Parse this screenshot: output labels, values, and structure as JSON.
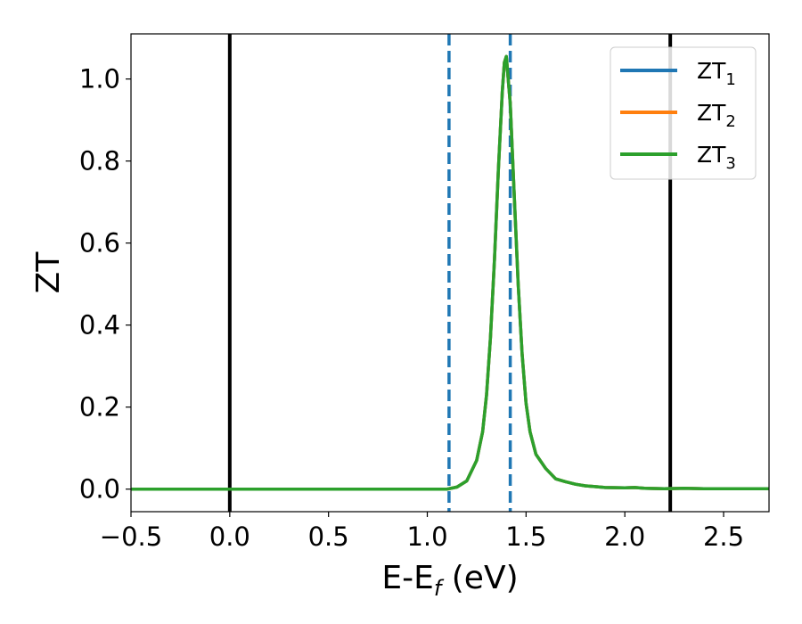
{
  "chart_data": {
    "type": "line",
    "xlabel": {
      "main": "E-E",
      "sub": "f",
      "suffix": " (eV)"
    },
    "ylabel": "ZT",
    "xlim": [
      -0.5,
      2.73
    ],
    "ylim": [
      -0.055,
      1.11
    ],
    "xticks": [
      -0.5,
      0.0,
      0.5,
      1.0,
      1.5,
      2.0,
      2.5
    ],
    "xtick_labels": [
      "−0.5",
      "0.0",
      "0.5",
      "1.0",
      "1.5",
      "2.0",
      "2.5"
    ],
    "yticks": [
      0.0,
      0.2,
      0.4,
      0.6,
      0.8,
      1.0
    ],
    "ytick_labels": [
      "0.0",
      "0.2",
      "0.4",
      "0.6",
      "0.8",
      "1.0"
    ],
    "grid": false,
    "legend_position": "top-right",
    "vlines": [
      {
        "x": 0.0,
        "style": "solid",
        "color": "#000000"
      },
      {
        "x": 2.23,
        "style": "solid",
        "color": "#000000"
      },
      {
        "x": 1.11,
        "style": "dashed",
        "color": "#1f77b4"
      },
      {
        "x": 1.42,
        "style": "dashed",
        "color": "#1f77b4"
      }
    ],
    "x": [
      -0.5,
      0.0,
      0.5,
      1.0,
      1.1,
      1.15,
      1.2,
      1.25,
      1.28,
      1.3,
      1.32,
      1.34,
      1.36,
      1.38,
      1.39,
      1.4,
      1.42,
      1.44,
      1.46,
      1.48,
      1.5,
      1.52,
      1.55,
      1.6,
      1.65,
      1.7,
      1.75,
      1.8,
      1.85,
      1.9,
      2.0,
      2.05,
      2.1,
      2.2,
      2.3,
      2.4,
      2.5,
      2.6,
      2.73
    ],
    "series": [
      {
        "name": "ZT",
        "sub": "1",
        "color": "#1f77b4",
        "values": [
          0.0,
          0.0,
          0.0,
          0.0,
          0.0,
          0.005,
          0.02,
          0.07,
          0.14,
          0.23,
          0.37,
          0.56,
          0.78,
          0.97,
          1.04,
          1.055,
          0.94,
          0.72,
          0.5,
          0.33,
          0.21,
          0.14,
          0.085,
          0.05,
          0.025,
          0.018,
          0.012,
          0.008,
          0.006,
          0.004,
          0.003,
          0.004,
          0.002,
          0.001,
          0.002,
          0.001,
          0.001,
          0.001,
          0.001
        ]
      },
      {
        "name": "ZT",
        "sub": "2",
        "color": "#ff7f0e",
        "values": [
          0.0,
          0.0,
          0.0,
          0.0,
          0.0,
          0.005,
          0.02,
          0.07,
          0.14,
          0.23,
          0.37,
          0.56,
          0.78,
          0.97,
          1.04,
          1.055,
          0.94,
          0.72,
          0.5,
          0.33,
          0.21,
          0.14,
          0.085,
          0.05,
          0.025,
          0.018,
          0.012,
          0.008,
          0.006,
          0.004,
          0.003,
          0.004,
          0.002,
          0.001,
          0.002,
          0.001,
          0.001,
          0.001,
          0.001
        ]
      },
      {
        "name": "ZT",
        "sub": "3",
        "color": "#2ca02c",
        "values": [
          0.0,
          0.0,
          0.0,
          0.0,
          0.0,
          0.005,
          0.02,
          0.07,
          0.14,
          0.23,
          0.37,
          0.56,
          0.78,
          0.97,
          1.04,
          1.055,
          0.94,
          0.72,
          0.5,
          0.33,
          0.21,
          0.14,
          0.085,
          0.05,
          0.025,
          0.018,
          0.012,
          0.008,
          0.006,
          0.004,
          0.003,
          0.004,
          0.002,
          0.001,
          0.002,
          0.001,
          0.001,
          0.001,
          0.001
        ]
      }
    ]
  }
}
